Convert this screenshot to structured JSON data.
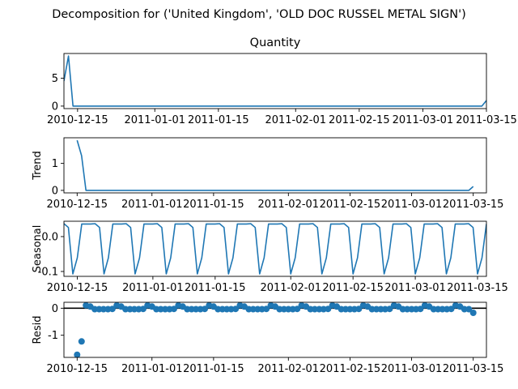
{
  "figure": {
    "suptitle": "Decomposition for ('United Kingdom', 'OLD DOC RUSSEL METAL SIGN')",
    "line_color": "#1f77b4",
    "zero_line_color": "#000000"
  },
  "chart_data": [
    {
      "type": "line",
      "panel": "observed",
      "title": "Quantity",
      "ylabel": "",
      "x_start": "2010-12-12",
      "x": [
        "2010-12-12",
        "2010-12-13",
        "2010-12-14",
        "2010-12-15",
        "2010-12-16",
        "2011-03-14",
        "2011-03-15"
      ],
      "values": [
        4.5,
        9,
        0,
        0,
        0,
        0,
        1
      ],
      "xlim": [
        "2010-12-12",
        "2011-03-15"
      ],
      "ylim": [
        -0.45,
        9.45
      ],
      "yticks": [
        0,
        5
      ],
      "xticks": [
        "2010-12-15",
        "2011-01-01",
        "2011-01-15",
        "2011-02-01",
        "2011-02-15",
        "2011-03-01",
        "2011-03-15"
      ],
      "grid": false
    },
    {
      "type": "line",
      "panel": "trend",
      "title": "",
      "ylabel": "Trend",
      "x": [
        "2010-12-15",
        "2010-12-16",
        "2010-12-17",
        "2011-03-14",
        "2011-03-15"
      ],
      "values": [
        1.857,
        1.286,
        0,
        0,
        0.143
      ],
      "xlim": [
        "2010-12-12",
        "2011-03-18"
      ],
      "ylim": [
        -0.093,
        1.95
      ],
      "yticks": [
        0,
        1
      ],
      "xticks": [
        "2010-12-15",
        "2011-01-01",
        "2011-01-15",
        "2011-02-01",
        "2011-02-15",
        "2011-03-01",
        "2011-03-15"
      ],
      "grid": false
    },
    {
      "type": "line",
      "panel": "seasonal",
      "title": "",
      "ylabel": "Seasonal",
      "period_days": 7,
      "x_start": "2010-12-12",
      "x_end": "2011-03-17",
      "weekly_pattern": [
        0.037,
        0.026,
        -0.107,
        -0.061,
        0.036,
        0.036,
        0.036
      ],
      "xlim": [
        "2010-12-12",
        "2011-03-17"
      ],
      "ylim": [
        -0.114,
        0.044
      ],
      "yticks": [
        -0.1,
        0.0
      ],
      "xticks": [
        "2010-12-15",
        "2011-01-01",
        "2011-01-15",
        "2011-02-01",
        "2011-02-15",
        "2011-03-01",
        "2011-03-15"
      ],
      "grid": false
    },
    {
      "type": "scatter",
      "panel": "resid",
      "title": "",
      "ylabel": "Resid",
      "x_start": "2010-12-15",
      "x_end": "2011-03-15",
      "first_points": [
        -1.72,
        -1.23
      ],
      "last_point": -0.17,
      "weekly_pattern": [
        -0.036,
        -0.026,
        0.107,
        0.061,
        -0.036,
        -0.036,
        -0.036
      ],
      "zero_line": true,
      "xlim": [
        "2010-12-12",
        "2011-03-18"
      ],
      "ylim": [
        -1.82,
        0.22
      ],
      "yticks": [
        -1,
        0
      ],
      "xticks": [
        "2010-12-15",
        "2011-01-01",
        "2011-01-15",
        "2011-02-01",
        "2011-02-15",
        "2011-03-01",
        "2011-03-15"
      ],
      "grid": false
    }
  ]
}
